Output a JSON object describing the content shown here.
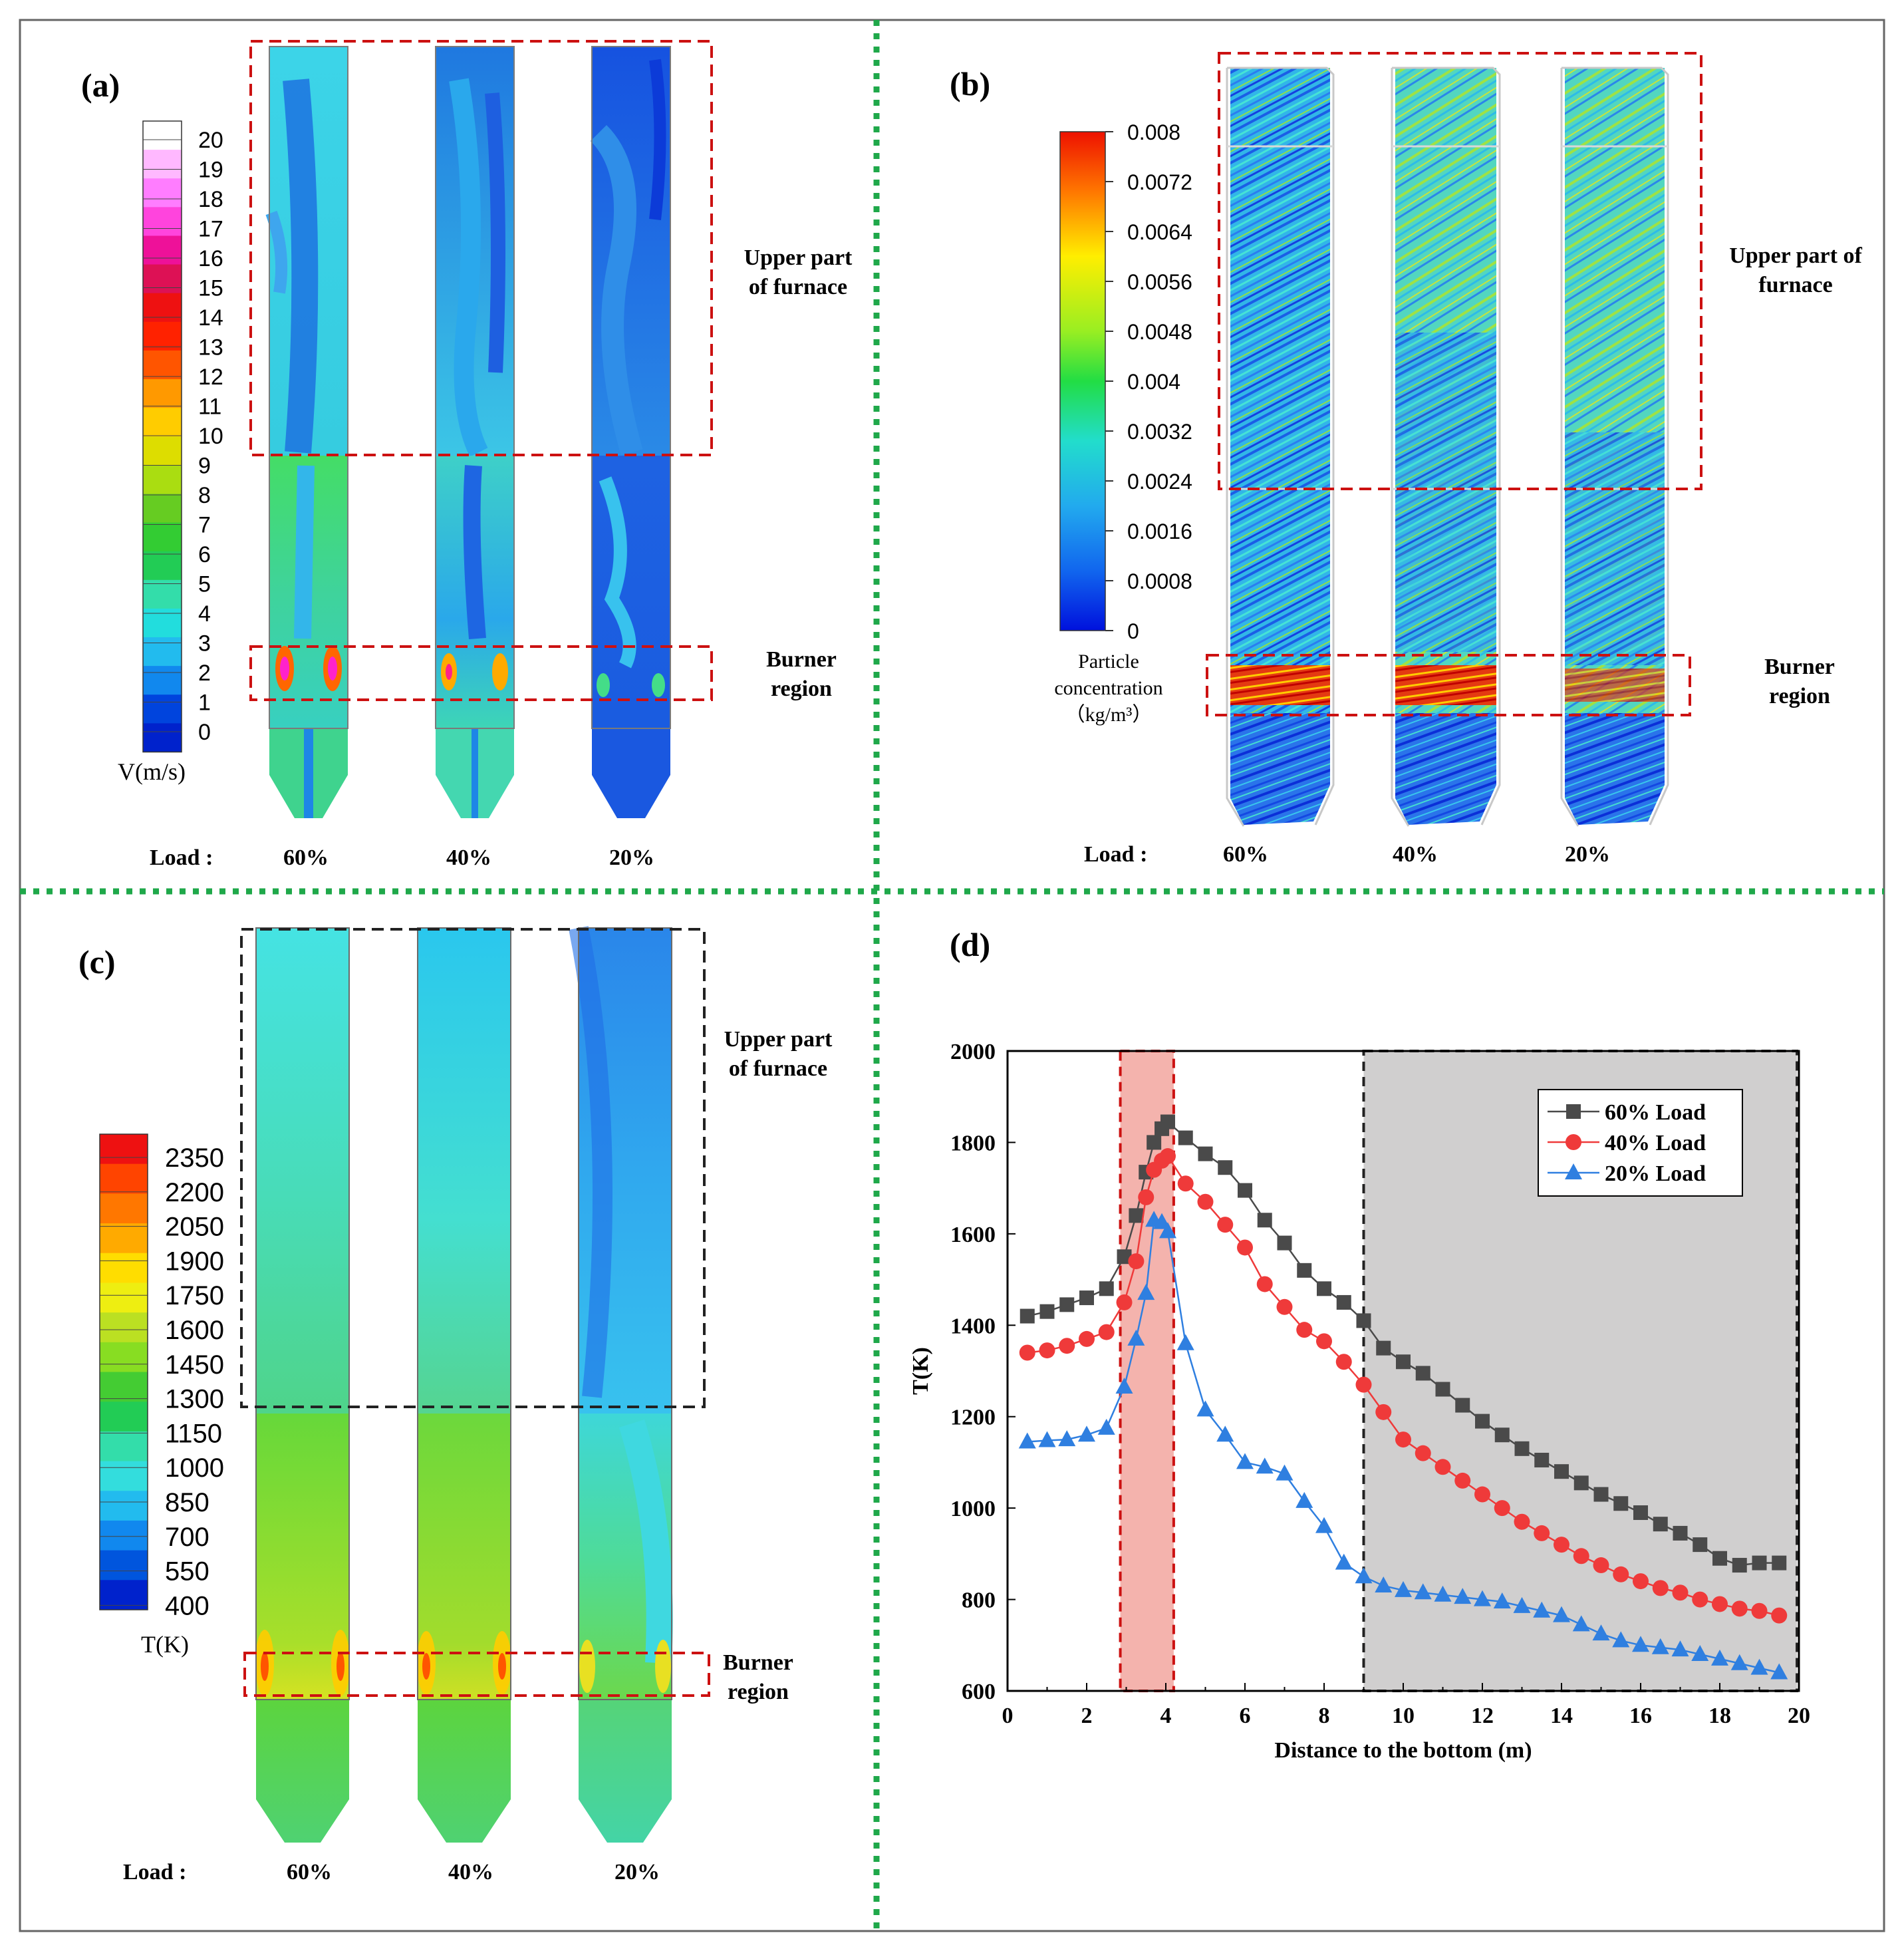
{
  "colors": {
    "divider": "#1fa84a",
    "border": "#666666",
    "region_red": "#cc1111",
    "region_black": "#222222",
    "burner_band": "#f4b3ad",
    "gray_region": "#d0cfcf",
    "s60": "#4a4a4a",
    "s40": "#ef3a3a",
    "s20": "#2f7fe0"
  },
  "panels": {
    "a": {
      "label": "(a)",
      "colorbar_ticks": [
        "20",
        "19",
        "18",
        "17",
        "16",
        "15",
        "14",
        "13",
        "12",
        "11",
        "10",
        "9",
        "8",
        "7",
        "6",
        "5",
        "4",
        "3",
        "2",
        "1",
        "0"
      ],
      "colorbar_colors": [
        "#ffffff",
        "#ffb8ff",
        "#ff7dff",
        "#ff44dd",
        "#ee1199",
        "#dd1155",
        "#ee1111",
        "#ff2200",
        "#ff5500",
        "#ff9900",
        "#ffcc00",
        "#dddd00",
        "#aadd11",
        "#66cc22",
        "#33cc33",
        "#22cc55",
        "#33ddaa",
        "#22dddd",
        "#22bbee",
        "#1188ee",
        "#0044dd",
        "#0022cc"
      ],
      "colorbar_title": "V(m/s)",
      "annotation_upper": [
        "Upper part",
        "of furnace"
      ],
      "annotation_burner": [
        "Burner",
        "region"
      ],
      "load_label": "Load :",
      "loads": [
        "60%",
        "40%",
        "20%"
      ]
    },
    "b": {
      "label": "(b)",
      "colorbar_ticks": [
        "0.008",
        "0.0072",
        "0.0064",
        "0.0056",
        "0.0048",
        "0.004",
        "0.0032",
        "0.0024",
        "0.0016",
        "0.0008",
        "0"
      ],
      "colorbar_title": [
        "Particle",
        "concentration",
        "（kg/m³）"
      ],
      "annotation_upper": [
        "Upper part of",
        "furnace"
      ],
      "annotation_burner": [
        "Burner",
        "region"
      ],
      "load_label": "Load :",
      "loads": [
        "60%",
        "40%",
        "20%"
      ]
    },
    "c": {
      "label": "(c)",
      "colorbar_ticks": [
        "2350",
        "2200",
        "2050",
        "1900",
        "1750",
        "1600",
        "1450",
        "1300",
        "1150",
        "1000",
        "850",
        "700",
        "550",
        "400"
      ],
      "colorbar_colors": [
        "#ee1111",
        "#ff4400",
        "#ff7700",
        "#ffaa00",
        "#ffdd00",
        "#eeee11",
        "#bbe022",
        "#88dd22",
        "#44cc33",
        "#22cc55",
        "#33ddaa",
        "#33dddd",
        "#22bbee",
        "#1188ee",
        "#0055dd",
        "#0022cc"
      ],
      "colorbar_title": "T(K)",
      "annotation_upper": [
        "Upper part",
        "of furnace"
      ],
      "annotation_burner": [
        "Burner",
        "region"
      ],
      "load_label": "Load :",
      "loads": [
        "60%",
        "40%",
        "20%"
      ]
    },
    "d": {
      "label": "(d)"
    }
  },
  "chart_data": {
    "type": "line",
    "title": "",
    "xlabel": "Distance to the bottom (m)",
    "ylabel": "T(K)",
    "xlim": [
      0,
      20
    ],
    "ylim": [
      600,
      2000
    ],
    "xticks": [
      "0",
      "2",
      "4",
      "6",
      "8",
      "10",
      "12",
      "14",
      "16",
      "18",
      "20"
    ],
    "yticks": [
      "600",
      "800",
      "1000",
      "1200",
      "1400",
      "1600",
      "1800",
      "2000"
    ],
    "burner_region_x": [
      2.85,
      4.2
    ],
    "upper_region_x": [
      9.0,
      19.95
    ],
    "legend": [
      "60%  Load",
      "40%  Load",
      "20%  Load"
    ],
    "series": [
      {
        "name": "60% Load",
        "marker": "square",
        "x": [
          0.5,
          1.0,
          1.5,
          2.0,
          2.5,
          2.95,
          3.25,
          3.5,
          3.7,
          3.9,
          4.05,
          4.5,
          5.0,
          5.5,
          6.0,
          6.5,
          7.0,
          7.5,
          8.0,
          8.5,
          9.0,
          9.5,
          10.0,
          10.5,
          11.0,
          11.5,
          12.0,
          12.5,
          13.0,
          13.5,
          14.0,
          14.5,
          15.0,
          15.5,
          16.0,
          16.5,
          17.0,
          17.5,
          18.0,
          18.5,
          19.0,
          19.5
        ],
        "y": [
          1420,
          1430,
          1445,
          1460,
          1480,
          1550,
          1640,
          1735,
          1800,
          1830,
          1845,
          1810,
          1775,
          1745,
          1695,
          1630,
          1580,
          1520,
          1480,
          1450,
          1410,
          1350,
          1320,
          1295,
          1260,
          1225,
          1190,
          1160,
          1130,
          1105,
          1080,
          1055,
          1030,
          1010,
          990,
          965,
          945,
          920,
          890,
          875,
          880,
          880
        ]
      },
      {
        "name": "40% Load",
        "marker": "circle",
        "x": [
          0.5,
          1.0,
          1.5,
          2.0,
          2.5,
          2.95,
          3.25,
          3.5,
          3.7,
          3.9,
          4.05,
          4.5,
          5.0,
          5.5,
          6.0,
          6.5,
          7.0,
          7.5,
          8.0,
          8.5,
          9.0,
          9.5,
          10.0,
          10.5,
          11.0,
          11.5,
          12.0,
          12.5,
          13.0,
          13.5,
          14.0,
          14.5,
          15.0,
          15.5,
          16.0,
          16.5,
          17.0,
          17.5,
          18.0,
          18.5,
          19.0,
          19.5
        ],
        "y": [
          1340,
          1345,
          1355,
          1370,
          1385,
          1450,
          1540,
          1680,
          1740,
          1760,
          1770,
          1710,
          1670,
          1620,
          1570,
          1490,
          1440,
          1390,
          1365,
          1320,
          1270,
          1210,
          1150,
          1120,
          1090,
          1060,
          1030,
          1000,
          970,
          945,
          920,
          895,
          875,
          855,
          840,
          825,
          815,
          800,
          790,
          780,
          775,
          765
        ]
      },
      {
        "name": "20% Load",
        "marker": "triangle",
        "x": [
          0.5,
          1.0,
          1.5,
          2.0,
          2.5,
          2.95,
          3.25,
          3.5,
          3.7,
          3.9,
          4.05,
          4.5,
          5.0,
          5.5,
          6.0,
          6.5,
          7.0,
          7.5,
          8.0,
          8.5,
          9.0,
          9.5,
          10.0,
          10.5,
          11.0,
          11.5,
          12.0,
          12.5,
          13.0,
          13.5,
          14.0,
          14.5,
          15.0,
          15.5,
          16.0,
          16.5,
          17.0,
          17.5,
          18.0,
          18.5,
          19.0,
          19.5
        ],
        "y": [
          1145,
          1148,
          1150,
          1160,
          1175,
          1265,
          1370,
          1470,
          1630,
          1625,
          1605,
          1360,
          1215,
          1160,
          1100,
          1090,
          1075,
          1015,
          960,
          880,
          850,
          830,
          820,
          815,
          810,
          805,
          800,
          795,
          785,
          775,
          765,
          745,
          725,
          710,
          700,
          695,
          690,
          680,
          670,
          660,
          650,
          640
        ]
      }
    ]
  }
}
